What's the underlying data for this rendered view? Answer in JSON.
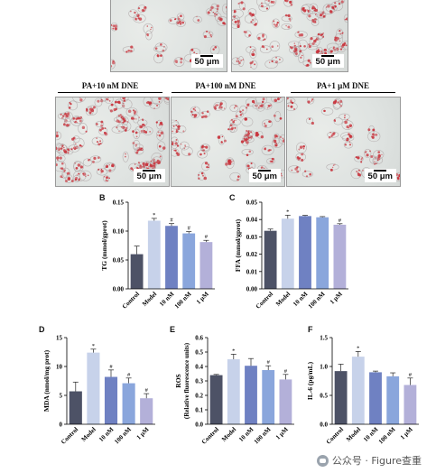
{
  "micrographs": [
    {
      "id": "top-left",
      "scale_label": "50 μm",
      "density": 25
    },
    {
      "id": "top-right",
      "scale_label": "50 μm",
      "density": 60
    },
    {
      "id": "pa-10nm",
      "condition": "PA+10 nM DNE",
      "scale_label": "50 μm",
      "density": 80
    },
    {
      "id": "pa-100nm",
      "condition": "PA+100 nM DNE",
      "scale_label": "50 μm",
      "density": 55
    },
    {
      "id": "pa-1um",
      "condition": "PA+1 μM DNE",
      "scale_label": "50 μm",
      "density": 30
    }
  ],
  "colors": {
    "control": "#4d5266",
    "model": "#c7d2ea",
    "nm10": "#6f81c2",
    "nm100": "#8aa6dc",
    "um1": "#b3b0d9",
    "stain": "#c8333c"
  },
  "chart_data": [
    {
      "panel": "B",
      "type": "bar",
      "ylabel": "TG (mmol/gprot)",
      "categories": [
        "Control",
        "Model",
        "10 nM",
        "100 nM",
        "1 μM"
      ],
      "values": [
        0.06,
        0.118,
        0.109,
        0.096,
        0.081
      ],
      "errors": [
        0.014,
        0.004,
        0.004,
        0.003,
        0.003
      ],
      "marks": [
        "",
        "*",
        "#",
        "#",
        "#"
      ],
      "ylim": [
        0,
        0.15
      ],
      "ticks": [
        "0.00",
        "0.05",
        "0.10",
        "0.15"
      ],
      "tickvals": [
        0,
        0.05,
        0.1,
        0.15
      ]
    },
    {
      "panel": "C",
      "type": "bar",
      "ylabel": "FFA (mmol/gprot)",
      "categories": [
        "Control",
        "Model",
        "10 nM",
        "100 nM",
        "1 μM"
      ],
      "values": [
        0.0335,
        0.0405,
        0.042,
        0.0413,
        0.037
      ],
      "errors": [
        0.001,
        0.002,
        0.0004,
        0.0004,
        0.0006
      ],
      "marks": [
        "",
        "*",
        "",
        "",
        "#"
      ],
      "ylim": [
        0,
        0.05
      ],
      "ticks": [
        "0.00",
        "0.01",
        "0.02",
        "0.03",
        "0.04",
        "0.05"
      ],
      "tickvals": [
        0,
        0.01,
        0.02,
        0.03,
        0.04,
        0.05
      ]
    },
    {
      "panel": "D",
      "type": "bar",
      "ylabel": "MDA (nmol/mg prot)",
      "categories": [
        "Control",
        "Model",
        "10 nM",
        "100 nM",
        "1 μM"
      ],
      "values": [
        5.7,
        12.4,
        8.2,
        7.1,
        4.5
      ],
      "errors": [
        1.6,
        0.6,
        1.2,
        0.9,
        0.8
      ],
      "marks": [
        "",
        "*",
        "#",
        "#",
        "#"
      ],
      "ylim": [
        0,
        15
      ],
      "ticks": [
        "0",
        "5",
        "10",
        "15"
      ],
      "tickvals": [
        0,
        5,
        10,
        15
      ]
    },
    {
      "panel": "E",
      "type": "bar",
      "ylabel": "ROS",
      "ylabel2": "(Relative fluorescence units)",
      "categories": [
        "Control",
        "Model",
        "10 nM",
        "100 nM",
        "1 μM"
      ],
      "values": [
        0.34,
        0.45,
        0.405,
        0.375,
        0.31
      ],
      "errors": [
        0.005,
        0.035,
        0.05,
        0.03,
        0.035
      ],
      "marks": [
        "",
        "*",
        "",
        "#",
        "#"
      ],
      "ylim": [
        0,
        0.6
      ],
      "ticks": [
        "0.0",
        "0.1",
        "0.2",
        "0.3",
        "0.4",
        "0.5",
        "0.6"
      ],
      "tickvals": [
        0,
        0.1,
        0.2,
        0.3,
        0.4,
        0.5,
        0.6
      ]
    },
    {
      "panel": "F",
      "type": "bar",
      "ylabel": "IL-6 (pg/mL)",
      "categories": [
        "Control",
        "Model",
        "10 nM",
        "100 nM",
        "1 μM"
      ],
      "values": [
        0.92,
        1.17,
        0.9,
        0.83,
        0.68
      ],
      "errors": [
        0.12,
        0.09,
        0.02,
        0.06,
        0.12
      ],
      "marks": [
        "",
        "*",
        "",
        "",
        "#"
      ],
      "ylim": [
        0,
        1.5
      ],
      "ticks": [
        "0.0",
        "0.5",
        "1.0",
        "1.5"
      ],
      "tickvals": [
        0,
        0.5,
        1.0,
        1.5
      ]
    }
  ],
  "watermark": {
    "text": "公众号 · Figure查重"
  }
}
